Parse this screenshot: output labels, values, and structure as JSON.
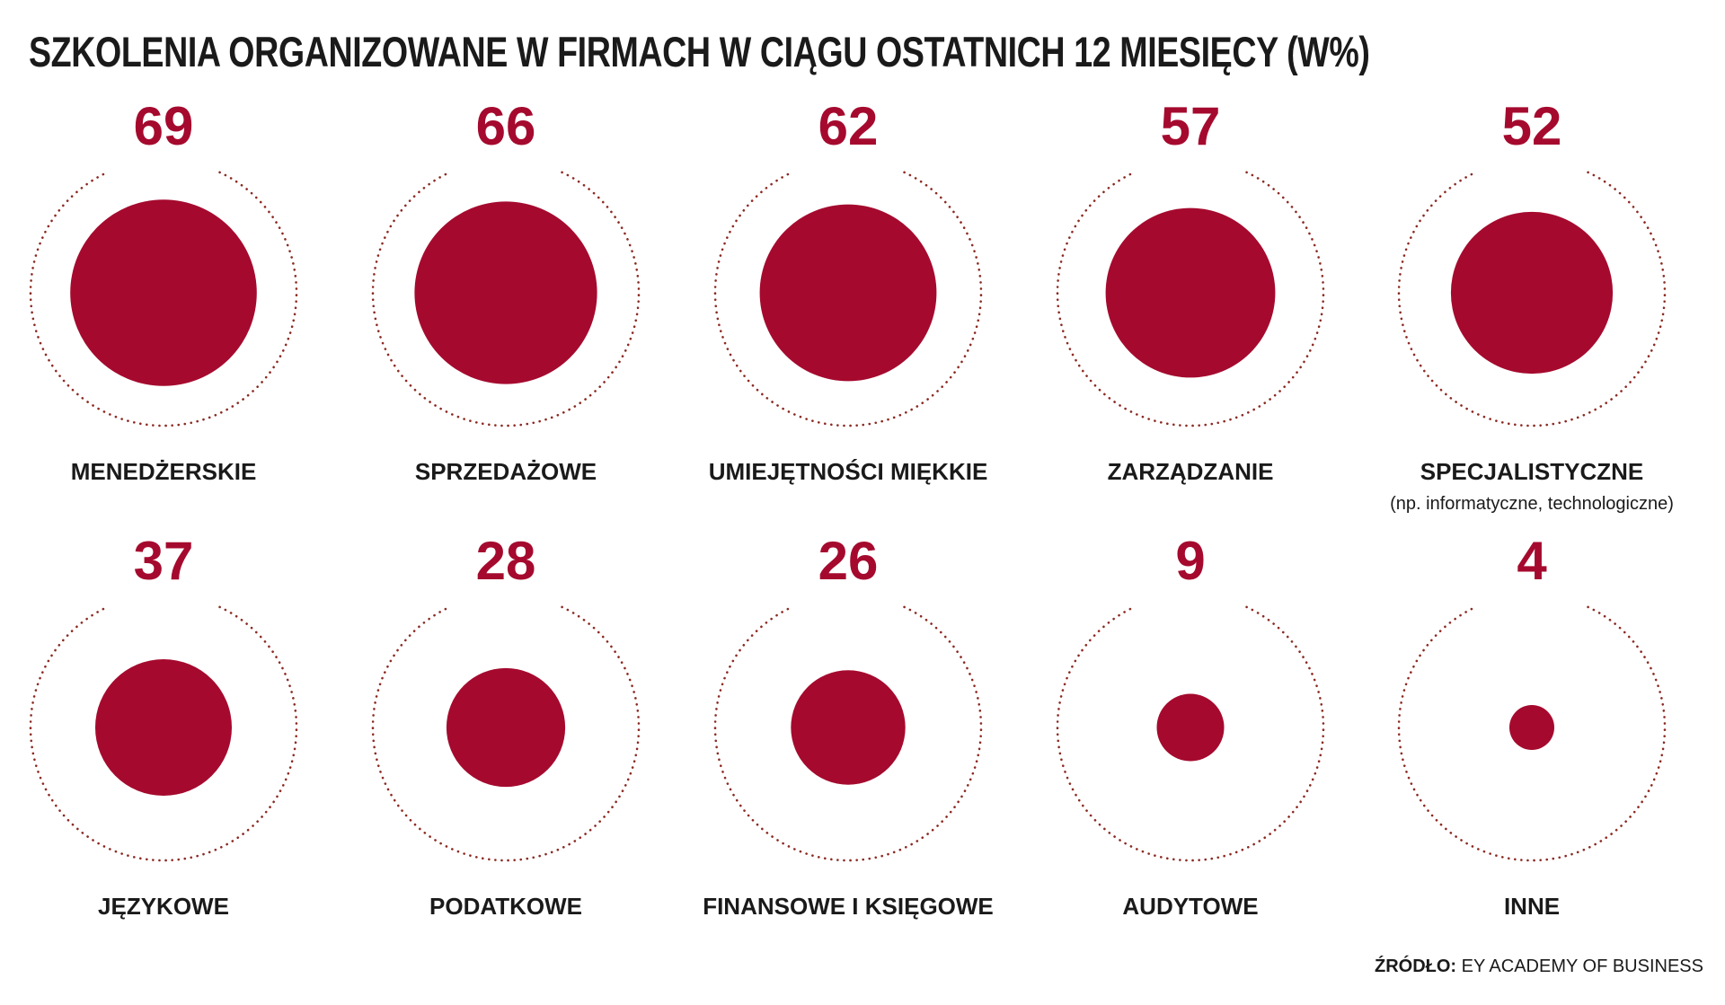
{
  "title": "SZKOLENIA ORGANIZOWANE W FIRMACH W CIĄGU OSTATNICH 12 MIESIĘCY (W%)",
  "source": {
    "key": "ŹRÓDŁO:",
    "value": "EY ACADEMY OF BUSINESS"
  },
  "colors": {
    "accent": "#a50a2e",
    "ring": "#8b2a22",
    "text": "#1a1a1a"
  },
  "chart_data": {
    "type": "bubble",
    "title": "SZKOLENIA ORGANIZOWANE W FIRMACH W CIĄGU OSTATNICH 12 MIESIĘCY (W%)",
    "unit": "%",
    "max_reference": 100,
    "reference_ring": "dotted",
    "categories": [
      {
        "label": "MENEDŻERSKIE",
        "sub": "",
        "value": 69
      },
      {
        "label": "SPRZEDAŻOWE",
        "sub": "",
        "value": 66
      },
      {
        "label": "UMIEJĘTNOŚCI MIĘKKIE",
        "sub": "",
        "value": 62
      },
      {
        "label": "ZARZĄDZANIE",
        "sub": "",
        "value": 57
      },
      {
        "label": "SPECJALISTYCZNE",
        "sub": "(np. informatyczne, technologiczne)",
        "value": 52
      },
      {
        "label": "JĘZYKOWE",
        "sub": "",
        "value": 37
      },
      {
        "label": "PODATKOWE",
        "sub": "",
        "value": 28
      },
      {
        "label": "FINANSOWE I KSIĘGOWE",
        "sub": "",
        "value": 26
      },
      {
        "label": "AUDYTOWE",
        "sub": "",
        "value": 9
      },
      {
        "label": "INNE",
        "sub": "",
        "value": 4
      }
    ]
  }
}
